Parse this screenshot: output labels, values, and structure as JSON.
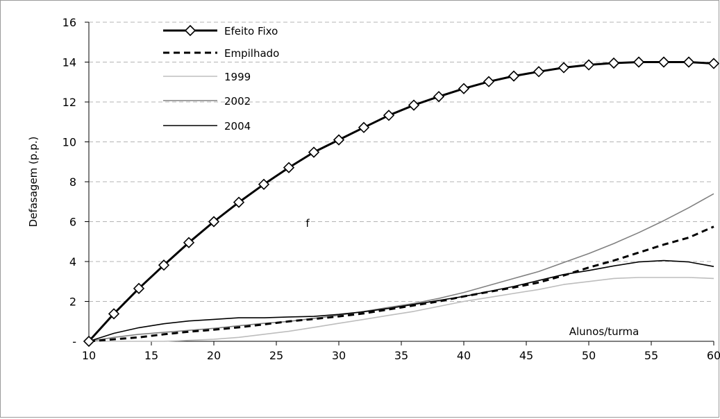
{
  "chart_data": {
    "type": "line",
    "ylabel": "Defasagem (p.p.)",
    "xlabel": "Alunos/turma",
    "annotation": "f",
    "xlim": [
      10,
      60
    ],
    "ylim": [
      0,
      16
    ],
    "x_ticks": [
      10,
      15,
      20,
      25,
      30,
      35,
      40,
      45,
      50,
      55,
      60
    ],
    "y_ticks": [
      0,
      2,
      4,
      6,
      8,
      10,
      12,
      14,
      16
    ],
    "y_tick_labels": [
      "-",
      "2",
      "4",
      "6",
      "8",
      "10",
      "12",
      "14",
      "16"
    ],
    "grid": "horizontal dashed",
    "legend_position": "top-left",
    "x": [
      10,
      12,
      14,
      16,
      18,
      20,
      22,
      24,
      26,
      28,
      30,
      32,
      34,
      36,
      38,
      40,
      42,
      44,
      46,
      48,
      50,
      52,
      54,
      56,
      58,
      60
    ],
    "series": [
      {
        "name": "Efeito Fixo",
        "color": "#000000",
        "style": "bold-diamond",
        "values": [
          0,
          1.38,
          2.65,
          3.82,
          4.95,
          6.0,
          6.97,
          7.87,
          8.71,
          9.48,
          10.1,
          10.72,
          11.33,
          11.84,
          12.27,
          12.67,
          13.02,
          13.3,
          13.52,
          13.72,
          13.86,
          13.95,
          14.0,
          14.0,
          14.0,
          13.93
        ]
      },
      {
        "name": "Empilhado",
        "color": "#000000",
        "style": "dashed",
        "values": [
          0,
          0.1,
          0.2,
          0.35,
          0.48,
          0.58,
          0.7,
          0.85,
          1.0,
          1.12,
          1.25,
          1.4,
          1.6,
          1.8,
          2.0,
          2.25,
          2.48,
          2.7,
          2.95,
          3.3,
          3.7,
          4.05,
          4.45,
          4.85,
          5.2,
          5.75
        ]
      },
      {
        "name": "1999",
        "color": "#bdbdbd",
        "style": "thin",
        "values": [
          0,
          0,
          0,
          0,
          0.05,
          0.1,
          0.2,
          0.35,
          0.5,
          0.7,
          0.9,
          1.1,
          1.3,
          1.5,
          1.75,
          2.0,
          2.2,
          2.4,
          2.6,
          2.85,
          3.0,
          3.15,
          3.2,
          3.2,
          3.2,
          3.15
        ]
      },
      {
        "name": "2002",
        "color": "#808080",
        "style": "thin",
        "values": [
          0,
          0.2,
          0.35,
          0.45,
          0.55,
          0.65,
          0.78,
          0.9,
          1.0,
          1.15,
          1.3,
          1.5,
          1.7,
          1.9,
          2.15,
          2.45,
          2.8,
          3.15,
          3.5,
          3.95,
          4.4,
          4.9,
          5.45,
          6.05,
          6.7,
          7.4
        ]
      },
      {
        "name": "2004",
        "color": "#000000",
        "style": "thin",
        "values": [
          0,
          0.4,
          0.68,
          0.88,
          1.02,
          1.1,
          1.18,
          1.18,
          1.22,
          1.25,
          1.35,
          1.48,
          1.65,
          1.85,
          2.05,
          2.25,
          2.5,
          2.75,
          3.05,
          3.35,
          3.55,
          3.78,
          3.98,
          4.05,
          3.98,
          3.75
        ]
      }
    ]
  }
}
